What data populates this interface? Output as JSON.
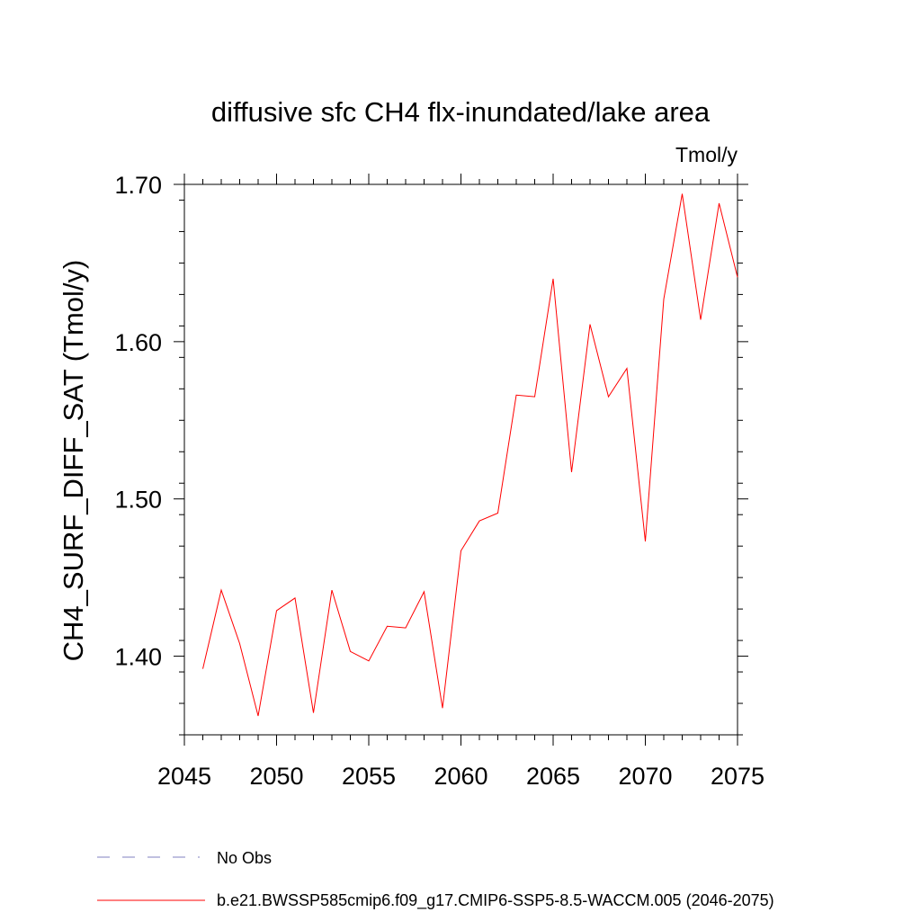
{
  "chart_data": {
    "type": "line",
    "title": "diffusive sfc CH4 flx-inundated/lake area",
    "units": "Tmol/y",
    "ylabel": "CH4_SURF_DIFF_SAT  (Tmol/y)",
    "xlabel": "",
    "xlim": [
      2045,
      2075
    ],
    "ylim": [
      1.35,
      1.7
    ],
    "xticks": [
      2045,
      2050,
      2055,
      2060,
      2065,
      2070,
      2075
    ],
    "xtick_labels": [
      "2045",
      "2050",
      "2055",
      "2060",
      "2065",
      "2070",
      "2075"
    ],
    "yticks": [
      1.4,
      1.5,
      1.6,
      1.7
    ],
    "ytick_labels": [
      "1.40",
      "1.50",
      "1.60",
      "1.70"
    ],
    "series": [
      {
        "name": "b.e21.BWSSP585cmip6.f09_g17.CMIP6-SSP5-8.5-WACCM.005 (2046-2075)",
        "color": "#ff0000",
        "style": "solid",
        "x": [
          2046,
          2047,
          2048,
          2049,
          2050,
          2051,
          2052,
          2053,
          2054,
          2055,
          2056,
          2057,
          2058,
          2059,
          2060,
          2061,
          2062,
          2063,
          2064,
          2065,
          2066,
          2067,
          2068,
          2069,
          2070,
          2071,
          2072,
          2073,
          2074,
          2075
        ],
        "values": [
          1.392,
          1.442,
          1.408,
          1.362,
          1.429,
          1.437,
          1.364,
          1.442,
          1.403,
          1.397,
          1.419,
          1.418,
          1.441,
          1.367,
          1.467,
          1.486,
          1.491,
          1.566,
          1.565,
          1.64,
          1.517,
          1.611,
          1.565,
          1.583,
          1.473,
          1.627,
          1.694,
          1.614,
          1.688,
          1.641
        ]
      }
    ],
    "legend": {
      "placement": "bottom",
      "entries": [
        {
          "label": "No Obs",
          "color": "#8080c0",
          "style": "dashed"
        },
        {
          "label": "b.e21.BWSSP585cmip6.f09_g17.CMIP6-SSP5-8.5-WACCM.005 (2046-2075)",
          "color": "#ff0000",
          "style": "solid"
        }
      ]
    }
  }
}
